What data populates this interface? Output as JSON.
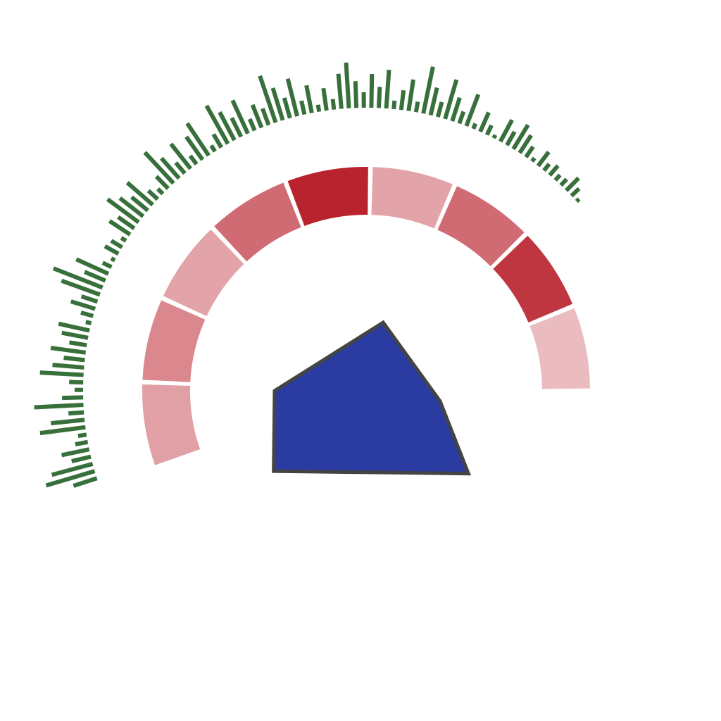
{
  "chart_data": [
    {
      "type": "radial-bar",
      "color": "#38703b",
      "angle_range": [
        -108,
        48
      ],
      "ylim": [
        0,
        80
      ],
      "values": [
        35,
        72,
        60,
        28,
        40,
        18,
        12,
        65,
        48,
        22,
        70,
        30,
        12,
        20,
        62,
        45,
        30,
        50,
        25,
        38,
        45,
        8,
        18,
        36,
        24,
        58,
        75,
        32,
        50,
        14,
        6,
        22,
        18,
        8,
        35,
        28,
        55,
        42,
        30,
        48,
        18,
        10,
        24,
        60,
        38,
        20,
        45,
        15,
        40,
        55,
        10,
        22,
        62,
        45,
        30,
        52,
        18,
        35,
        25,
        70,
        48,
        30,
        55,
        20,
        40,
        10,
        32,
        15,
        50,
        65,
        38,
        22,
        48,
        30,
        55,
        12,
        28,
        45,
        15,
        68,
        40,
        22,
        58,
        35,
        18,
        48,
        8,
        30,
        15,
        5,
        35,
        22,
        40,
        30,
        18,
        6,
        25,
        12,
        18,
        10,
        12,
        25,
        15,
        5
      ]
    },
    {
      "type": "heat-ring",
      "angle_range": [
        -110,
        90
      ],
      "clim": [
        0,
        1
      ],
      "colors": [
        "#f5dde0",
        "#b81f2a"
      ],
      "values": [
        0.32,
        0.45,
        0.3,
        0.6,
        0.98,
        0.3,
        0.6,
        0.88,
        0.18
      ]
    },
    {
      "type": "polygon",
      "color": "#2a3ca2",
      "edge_color": "#444444",
      "angles": [
        14,
        98,
        129,
        229,
        270
      ],
      "values": [
        100,
        106,
        187,
        174,
        130
      ]
    }
  ]
}
